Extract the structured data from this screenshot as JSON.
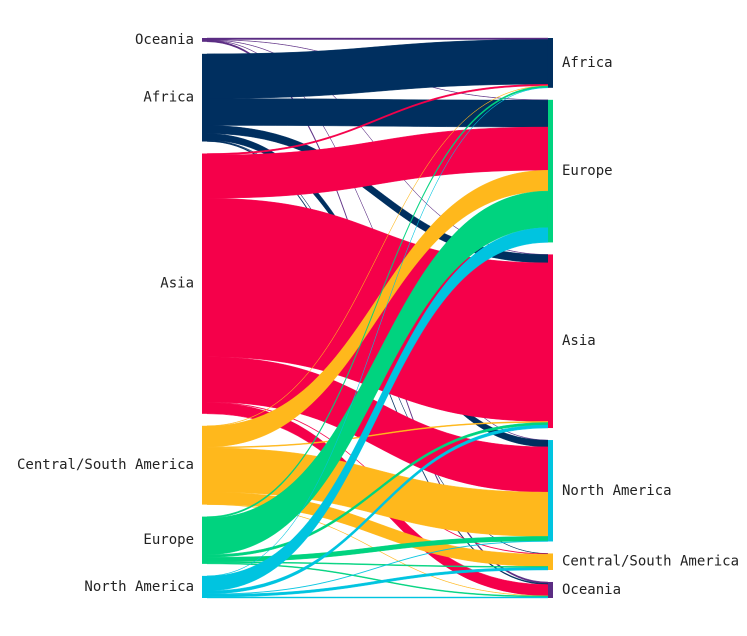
{
  "chart_data": {
    "type": "sankey",
    "title": "",
    "colors": {
      "Oceania": "#5b2c83",
      "Africa": "#002f5f",
      "Asia": "#f5004a",
      "Central/South America": "#ffb81c",
      "Europe": "#00d37f",
      "North America": "#00c4e0"
    },
    "sources": [
      "Oceania",
      "Africa",
      "Asia",
      "Central/South America",
      "Europe",
      "North America"
    ],
    "targets": [
      "Africa",
      "Europe",
      "Asia",
      "North America",
      "Central/South America",
      "Oceania"
    ],
    "flows": [
      {
        "source": "Oceania",
        "target": "Africa",
        "value": 0.3
      },
      {
        "source": "Oceania",
        "target": "Europe",
        "value": 0.05
      },
      {
        "source": "Oceania",
        "target": "Asia",
        "value": 0.05
      },
      {
        "source": "Oceania",
        "target": "North America",
        "value": 0.05
      },
      {
        "source": "Oceania",
        "target": "Oceania",
        "value": 0.3
      },
      {
        "source": "Africa",
        "target": "Africa",
        "value": 8.8
      },
      {
        "source": "Africa",
        "target": "Europe",
        "value": 5.3
      },
      {
        "source": "Africa",
        "target": "Asia",
        "value": 1.6
      },
      {
        "source": "Africa",
        "target": "North America",
        "value": 1.3
      },
      {
        "source": "Africa",
        "target": "Central/South America",
        "value": 0.05
      },
      {
        "source": "Africa",
        "target": "Oceania",
        "value": 0.2
      },
      {
        "source": "Asia",
        "target": "Africa",
        "value": 0.3
      },
      {
        "source": "Asia",
        "target": "Europe",
        "value": 8.5
      },
      {
        "source": "Asia",
        "target": "Asia",
        "value": 31.2
      },
      {
        "source": "Asia",
        "target": "North America",
        "value": 8.9
      },
      {
        "source": "Asia",
        "target": "Central/South America",
        "value": 0.1
      },
      {
        "source": "Asia",
        "target": "Oceania",
        "value": 2.2
      },
      {
        "source": "Central/South America",
        "target": "Africa",
        "value": 0.05
      },
      {
        "source": "Central/South America",
        "target": "Europe",
        "value": 4.1
      },
      {
        "source": "Central/South America",
        "target": "Asia",
        "value": 0.2
      },
      {
        "source": "Central/South America",
        "target": "North America",
        "value": 8.7
      },
      {
        "source": "Central/South America",
        "target": "Central/South America",
        "value": 2.4
      },
      {
        "source": "Central/South America",
        "target": "Oceania",
        "value": 0.05
      },
      {
        "source": "Europe",
        "target": "Africa",
        "value": 0.3
      },
      {
        "source": "Europe",
        "target": "Europe",
        "value": 7.2
      },
      {
        "source": "Europe",
        "target": "Asia",
        "value": 0.5
      },
      {
        "source": "Europe",
        "target": "North America",
        "value": 0.9
      },
      {
        "source": "Europe",
        "target": "Central/South America",
        "value": 0.2
      },
      {
        "source": "Europe",
        "target": "Oceania",
        "value": 0.2
      },
      {
        "source": "North America",
        "target": "Africa",
        "value": 0.05
      },
      {
        "source": "North America",
        "target": "Europe",
        "value": 2.9
      },
      {
        "source": "North America",
        "target": "Asia",
        "value": 0.6
      },
      {
        "source": "North America",
        "target": "North America",
        "value": 0.1
      },
      {
        "source": "North America",
        "target": "Central/South America",
        "value": 0.5
      },
      {
        "source": "North America",
        "target": "Oceania",
        "value": 0.2
      }
    ]
  }
}
